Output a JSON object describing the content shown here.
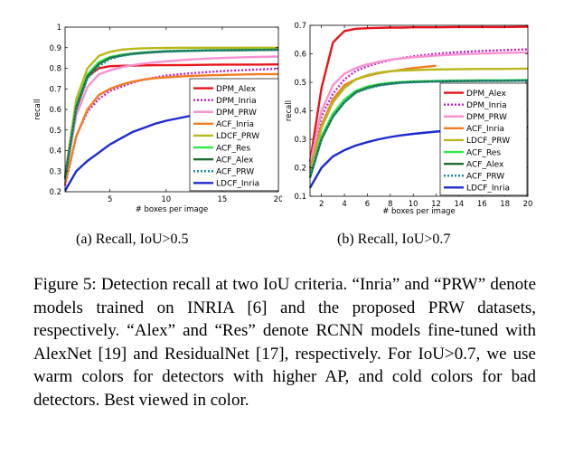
{
  "figure": {
    "caption": "Figure 5: Detection recall at two IoU criteria. “Inria” and “PRW” denote models trained on INRIA [6] and the proposed PRW datasets, respectively. “Alex” and “Res” denote RCNN models fine-tuned with AlexNet [19] and ResidualNet [17], respectively. For IoU>0.7, we use warm colors for detectors with higher AP, and cold colors for bad detectors. Best viewed in color."
  },
  "chart_data": [
    {
      "type": "line",
      "sublabel": "(a) Recall, IoU>0.5",
      "xlabel": "# boxes per image",
      "ylabel": "recall",
      "xlim": [
        1,
        20
      ],
      "ylim": [
        0.2,
        1
      ],
      "xticks": [
        5,
        10,
        15,
        20
      ],
      "yticks": [
        0.2,
        0.3,
        0.4,
        0.5,
        0.6,
        0.7,
        0.8,
        0.9,
        1
      ],
      "ytick_labels": [
        "0.2",
        "0.3",
        "0.4",
        "0.5",
        "0.6",
        "0.7",
        "0.8",
        "0.9",
        "1"
      ],
      "grid": false,
      "legend_position": "bottom-right",
      "x": [
        1,
        2,
        3,
        4,
        5,
        6,
        7,
        8,
        9,
        10,
        12,
        14,
        16,
        18,
        20
      ],
      "series": [
        {
          "name": "DPM_Alex",
          "color": "#e8141a",
          "dash": "solid",
          "values": [
            0.26,
            0.6,
            0.76,
            0.8,
            0.81,
            0.812,
            0.813,
            0.814,
            0.815,
            0.815,
            0.816,
            0.817,
            0.818,
            0.818,
            0.819
          ]
        },
        {
          "name": "DPM_Inria",
          "color": "#c81ec8",
          "dash": "dotted",
          "values": [
            0.23,
            0.47,
            0.59,
            0.65,
            0.69,
            0.71,
            0.73,
            0.745,
            0.755,
            0.765,
            0.775,
            0.783,
            0.789,
            0.794,
            0.798
          ]
        },
        {
          "name": "DPM_PRW",
          "color": "#f792cf",
          "dash": "solid",
          "values": [
            0.27,
            0.57,
            0.71,
            0.77,
            0.79,
            0.805,
            0.815,
            0.823,
            0.829,
            0.834,
            0.842,
            0.848,
            0.852,
            0.855,
            0.857
          ]
        },
        {
          "name": "ACF_Inria",
          "color": "#f07d22",
          "dash": "solid",
          "values": [
            0.24,
            0.47,
            0.6,
            0.67,
            0.7,
            0.72,
            0.735,
            0.745,
            0.752,
            0.756,
            0.762,
            0.766,
            0.769,
            0.771,
            0.772
          ]
        },
        {
          "name": "LDCF_PRW",
          "color": "#b8b81c",
          "dash": "solid",
          "values": [
            0.28,
            0.65,
            0.8,
            0.86,
            0.88,
            0.89,
            0.895,
            0.897,
            0.898,
            0.899,
            0.9,
            0.9,
            0.9,
            0.9,
            0.9
          ]
        },
        {
          "name": "ACF_Res",
          "color": "#2ee84a",
          "dash": "solid",
          "values": [
            0.27,
            0.62,
            0.77,
            0.83,
            0.855,
            0.865,
            0.872,
            0.877,
            0.88,
            0.883,
            0.886,
            0.888,
            0.889,
            0.89,
            0.89
          ]
        },
        {
          "name": "ACF_Alex",
          "color": "#1f6e32",
          "dash": "solid",
          "values": [
            0.27,
            0.61,
            0.76,
            0.82,
            0.85,
            0.862,
            0.87,
            0.875,
            0.879,
            0.882,
            0.885,
            0.887,
            0.888,
            0.889,
            0.89
          ]
        },
        {
          "name": "ACF_PRW",
          "color": "#1f8ea0",
          "dash": "dotted",
          "values": [
            0.26,
            0.6,
            0.75,
            0.81,
            0.845,
            0.86,
            0.868,
            0.873,
            0.877,
            0.88,
            0.884,
            0.886,
            0.887,
            0.888,
            0.889
          ]
        },
        {
          "name": "LDCF_Inria",
          "color": "#1c2ad2",
          "dash": "solid",
          "values": [
            0.205,
            0.3,
            0.35,
            0.39,
            0.43,
            0.46,
            0.49,
            0.51,
            0.53,
            0.545,
            0.567,
            0.585,
            0.6,
            0.613,
            0.625
          ]
        }
      ]
    },
    {
      "type": "line",
      "sublabel": "(b) Recall, IoU>0.7",
      "xlabel": "# boxes per image",
      "ylabel": "recall",
      "xlim": [
        1,
        20
      ],
      "ylim": [
        0.1,
        0.7
      ],
      "xticks": [
        2,
        4,
        6,
        8,
        10,
        12,
        14,
        16,
        18,
        20
      ],
      "yticks": [
        0.1,
        0.2,
        0.3,
        0.4,
        0.5,
        0.6,
        0.7
      ],
      "ytick_labels": [
        "0.1",
        "0.2",
        "0.3",
        "0.4",
        "0.5",
        "0.6",
        "0.7"
      ],
      "grid": false,
      "legend_position": "bottom-right",
      "x": [
        1,
        2,
        3,
        4,
        5,
        6,
        7,
        8,
        9,
        10,
        12,
        14,
        16,
        18,
        20
      ],
      "series": [
        {
          "name": "DPM_Alex",
          "color": "#e8141a",
          "dash": "solid",
          "values": [
            0.22,
            0.48,
            0.64,
            0.68,
            0.688,
            0.69,
            0.691,
            0.692,
            0.692,
            0.693,
            0.693,
            0.694,
            0.694,
            0.694,
            0.695
          ]
        },
        {
          "name": "DPM_Inria",
          "color": "#c81ec8",
          "dash": "dotted",
          "values": [
            0.2,
            0.38,
            0.46,
            0.51,
            0.54,
            0.556,
            0.568,
            0.578,
            0.585,
            0.591,
            0.6,
            0.606,
            0.61,
            0.613,
            0.616
          ]
        },
        {
          "name": "DPM_PRW",
          "color": "#f792cf",
          "dash": "solid",
          "values": [
            0.21,
            0.4,
            0.49,
            0.53,
            0.55,
            0.563,
            0.572,
            0.579,
            0.584,
            0.588,
            0.594,
            0.598,
            0.601,
            0.603,
            0.605
          ]
        },
        {
          "name": "ACF_Inria",
          "color": "#f07d22",
          "dash": "solid",
          "values": [
            0.19,
            0.35,
            0.44,
            0.49,
            0.51,
            0.523,
            0.532,
            0.538,
            0.544,
            0.55,
            0.558,
            null,
            null,
            null,
            null
          ]
        },
        {
          "name": "LDCF_PRW",
          "color": "#b8b81c",
          "dash": "solid",
          "values": [
            0.18,
            0.34,
            0.43,
            0.48,
            0.51,
            0.525,
            0.534,
            0.539,
            0.541,
            0.543,
            0.545,
            0.546,
            0.547,
            0.547,
            0.548
          ]
        },
        {
          "name": "ACF_Res",
          "color": "#2ee84a",
          "dash": "solid",
          "values": [
            0.17,
            0.31,
            0.39,
            0.44,
            0.47,
            0.485,
            0.493,
            0.498,
            0.501,
            0.503,
            0.505,
            0.506,
            0.507,
            0.507,
            0.508
          ]
        },
        {
          "name": "ACF_Alex",
          "color": "#1f6e32",
          "dash": "solid",
          "values": [
            0.165,
            0.3,
            0.38,
            0.43,
            0.465,
            0.48,
            0.49,
            0.495,
            0.499,
            0.501,
            0.503,
            0.504,
            0.505,
            0.505,
            0.506
          ]
        },
        {
          "name": "ACF_PRW",
          "color": "#1f8ea0",
          "dash": "dotted",
          "values": [
            0.165,
            0.3,
            0.38,
            0.43,
            0.463,
            0.478,
            0.488,
            0.494,
            0.498,
            0.5,
            0.503,
            0.504,
            0.505,
            0.506,
            0.506
          ]
        },
        {
          "name": "LDCF_Inria",
          "color": "#1c2ad2",
          "dash": "solid",
          "values": [
            0.13,
            0.2,
            0.24,
            0.262,
            0.278,
            0.29,
            0.3,
            0.308,
            0.314,
            0.319,
            0.327,
            0.333,
            0.337,
            0.34,
            0.342
          ]
        }
      ]
    }
  ]
}
